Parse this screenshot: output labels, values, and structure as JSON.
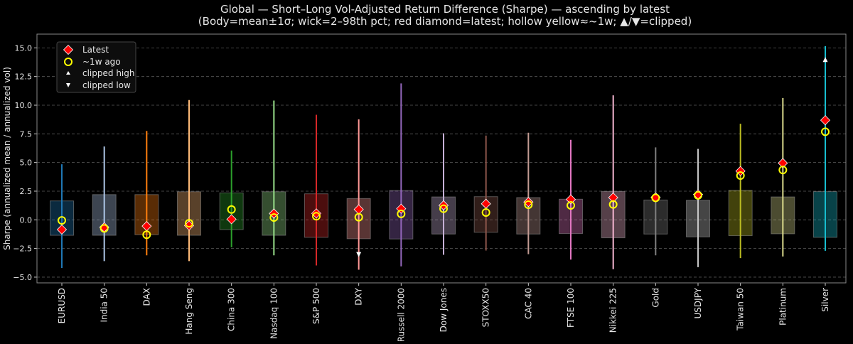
{
  "chart_data": {
    "type": "box-range",
    "title": "Global — Short–Long Vol-Adjusted Return Difference (Sharpe) — ascending by latest",
    "subtitle": "(Body=mean±1σ; wick=2–98th pct; red diamond=latest; hollow yellow≈~1w; ▲/▼=clipped)",
    "xlabel": "",
    "ylabel": "Sharpe (annualized mean / annualized vol)",
    "ylim": [
      -5.5,
      16.2
    ],
    "yticks": [
      "−5.0",
      "−2.5",
      "0.0",
      "2.5",
      "5.0",
      "7.5",
      "10.0",
      "12.5",
      "15.0"
    ],
    "ytick_values": [
      -5,
      -2.5,
      0,
      2.5,
      5,
      7.5,
      10,
      12.5,
      15
    ],
    "grid": "horizontal dashed",
    "legend_position": "top-left",
    "legend": [
      {
        "label": "Latest",
        "marker": "red-diamond"
      },
      {
        "label": "~1w ago",
        "marker": "hollow-yellow-circle"
      },
      {
        "label": "clipped high",
        "marker": "white-triangle-up"
      },
      {
        "label": "clipped low",
        "marker": "white-triangle-down"
      }
    ],
    "colors": {
      "latest": "#ff0000",
      "week_ago": "#ffff00",
      "clip": "#ffffff",
      "background": "#000000",
      "grid": "#555555"
    },
    "categories": [
      "EURUSD",
      "India 50",
      "DAX",
      "Hang Seng",
      "China 300",
      "Nasdaq 100",
      "S&P 500",
      "DXY",
      "Russell 2000",
      "Dow Jones",
      "STOXX50",
      "CAC 40",
      "FTSE 100",
      "Nikkei 225",
      "Gold",
      "USDJPY",
      "Taiwan 50",
      "Platinum",
      "Silver"
    ],
    "series": [
      {
        "category": "EURUSD",
        "color": "#1f77b4",
        "body_low": -1.35,
        "body_high": 1.65,
        "wick_low": -4.2,
        "wick_high": 4.85,
        "latest": -0.85,
        "week_ago": -0.05
      },
      {
        "category": "India 50",
        "color": "#aec7e8",
        "body_low": -1.35,
        "body_high": 2.2,
        "wick_low": -3.6,
        "wick_high": 6.4,
        "latest": -0.65,
        "week_ago": -0.75
      },
      {
        "category": "DAX",
        "color": "#ff7f0e",
        "body_low": -1.3,
        "body_high": 2.2,
        "wick_low": -3.1,
        "wick_high": 7.75,
        "latest": -0.55,
        "week_ago": -1.3
      },
      {
        "category": "Hang Seng",
        "color": "#ffbb78",
        "body_low": -1.35,
        "body_high": 2.45,
        "wick_low": -3.6,
        "wick_high": 10.45,
        "latest": -0.5,
        "week_ago": -0.3
      },
      {
        "category": "China 300",
        "color": "#2ca02c",
        "body_low": -0.85,
        "body_high": 2.35,
        "wick_low": -2.4,
        "wick_high": 6.05,
        "latest": 0.05,
        "week_ago": 0.9
      },
      {
        "category": "Nasdaq 100",
        "color": "#98df8a",
        "body_low": -1.35,
        "body_high": 2.45,
        "wick_low": -3.1,
        "wick_high": 10.4,
        "latest": 0.55,
        "week_ago": 0.2
      },
      {
        "category": "S&P 500",
        "color": "#d62728",
        "body_low": -1.53,
        "body_high": 2.27,
        "wick_low": -3.98,
        "wick_high": 9.16,
        "latest": 0.56,
        "week_ago": 0.31
      },
      {
        "category": "DXY",
        "color": "#ff9896",
        "body_low": -1.65,
        "body_high": 1.86,
        "wick_low": -4.35,
        "wick_high": 8.77,
        "latest": 0.91,
        "week_ago": 0.23,
        "clipped_low": -3.0
      },
      {
        "category": "Russell 2000",
        "color": "#9467bd",
        "body_low": -1.67,
        "body_high": 2.56,
        "wick_low": -4.06,
        "wick_high": 11.9,
        "latest": 0.97,
        "week_ago": 0.52
      },
      {
        "category": "Dow Jones",
        "color": "#c5b0d5",
        "body_low": -1.24,
        "body_high": 2.0,
        "wick_low": -3.05,
        "wick_high": 7.55,
        "latest": 1.26,
        "week_ago": 0.97
      },
      {
        "category": "STOXX50",
        "color": "#8c564b",
        "body_low": -1.09,
        "body_high": 2.02,
        "wick_low": -2.68,
        "wick_high": 7.35,
        "latest": 1.4,
        "week_ago": 0.64
      },
      {
        "category": "CAC 40",
        "color": "#c49c94",
        "body_low": -1.24,
        "body_high": 1.94,
        "wick_low": -3.0,
        "wick_high": 7.6,
        "latest": 1.55,
        "week_ago": 1.32
      },
      {
        "category": "FTSE 100",
        "color": "#e377c2",
        "body_low": -1.2,
        "body_high": 1.8,
        "wick_low": -3.47,
        "wick_high": 6.98,
        "latest": 1.78,
        "week_ago": 1.26
      },
      {
        "category": "Nikkei 225",
        "color": "#f7b6d2",
        "body_low": -1.57,
        "body_high": 2.48,
        "wick_low": -4.31,
        "wick_high": 10.86,
        "latest": 1.94,
        "week_ago": 1.34
      },
      {
        "category": "Gold",
        "color": "#7f7f7f",
        "body_low": -1.24,
        "body_high": 1.73,
        "wick_low": -3.1,
        "wick_high": 6.32,
        "latest": 1.96,
        "week_ago": 1.92
      },
      {
        "category": "USDJPY",
        "color": "#c7c7c7",
        "body_low": -1.49,
        "body_high": 1.71,
        "wick_low": -4.13,
        "wick_high": 6.19,
        "latest": 2.21,
        "week_ago": 2.13
      },
      {
        "category": "Taiwan 50",
        "color": "#bcbd22",
        "body_low": -1.38,
        "body_high": 2.58,
        "wick_low": -3.34,
        "wick_high": 8.38,
        "latest": 4.25,
        "week_ago": 3.86
      },
      {
        "category": "Platinum",
        "color": "#dbdb8d",
        "body_low": -1.22,
        "body_high": 2.0,
        "wick_low": -3.2,
        "wick_high": 10.63,
        "latest": 4.95,
        "week_ago": 4.35
      },
      {
        "category": "Silver",
        "color": "#17becf",
        "body_low": -1.53,
        "body_high": 2.46,
        "wick_low": -2.7,
        "wick_high": 15.15,
        "latest": 8.69,
        "week_ago": 7.68,
        "clipped_high": 13.95
      }
    ]
  }
}
